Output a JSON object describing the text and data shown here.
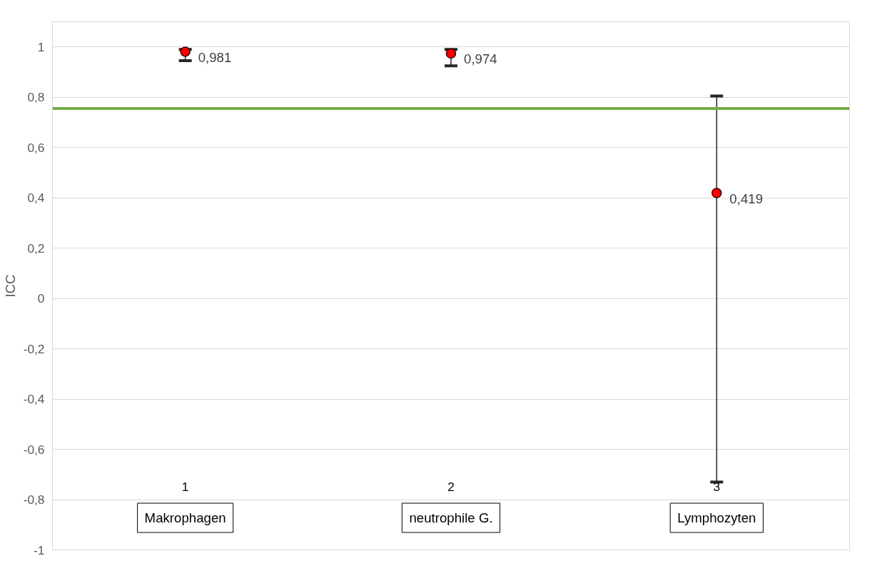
{
  "chart_data": {
    "type": "scatter",
    "ylabel": "ICC",
    "x": [
      1,
      2,
      3
    ],
    "series": [
      {
        "color": "#ff0000",
        "values": [
          0.981,
          0.974,
          0.419
        ],
        "errors": [
          [
            0.945,
            0.99
          ],
          [
            0.925,
            0.99
          ],
          [
            -0.73,
            0.805
          ]
        ],
        "value_labels": [
          "0,981",
          "0,974",
          "0,419"
        ]
      }
    ],
    "marker": "circle",
    "xlim": [
      0.5,
      3.5
    ],
    "xticks": [
      1,
      2,
      3
    ],
    "ylim": [
      -1,
      1.1
    ],
    "yticks": [
      {
        "value": -1,
        "label": "-1"
      },
      {
        "value": -0.8,
        "label": "-0,8"
      },
      {
        "value": -0.6,
        "label": "-0,6"
      },
      {
        "value": -0.4,
        "label": "-0,4"
      },
      {
        "value": -0.2,
        "label": "-0,2"
      },
      {
        "value": 0,
        "label": "0"
      },
      {
        "value": 0.2,
        "label": "0,2"
      },
      {
        "value": 0.4,
        "label": "0,4"
      },
      {
        "value": 0.6,
        "label": "0,6"
      },
      {
        "value": 0.8,
        "label": "0,8"
      },
      {
        "value": 1,
        "label": "1"
      }
    ],
    "grid": "y",
    "ref_lines": [
      {
        "axis": "y",
        "value": 0.755,
        "color": "#70ad47"
      }
    ],
    "annotations": [
      "Makrophagen",
      "neutrophile G.",
      "Lymphozyten"
    ]
  }
}
